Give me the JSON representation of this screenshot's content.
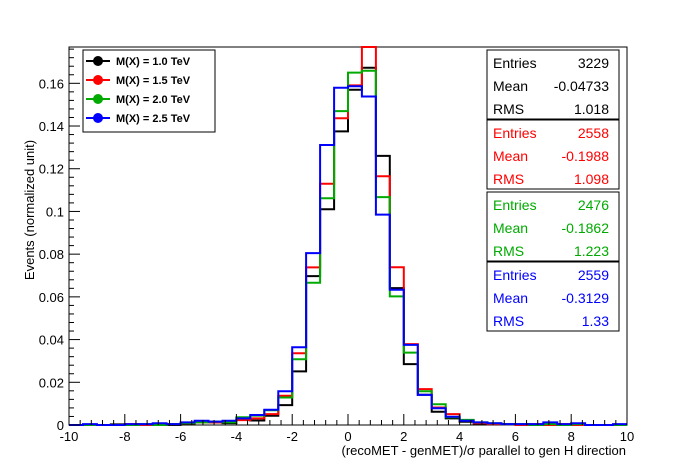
{
  "chart_data": {
    "type": "line",
    "drawstyle": "histogram-steps",
    "xlabel": "(recoMET - genMET)/σ parallel to gen H direction",
    "ylabel": "Events (normalized unit)",
    "xlim": [
      -10,
      10
    ],
    "ylim": [
      0,
      0.177
    ],
    "x_ticks": [
      -10,
      -8,
      -6,
      -4,
      -2,
      0,
      2,
      4,
      6,
      8,
      10
    ],
    "y_ticks": [
      0,
      0.02,
      0.04,
      0.06,
      0.08,
      0.1,
      0.12,
      0.14,
      0.16
    ],
    "y_tick_labels": [
      "0",
      "0.02",
      "0.04",
      "0.06",
      "0.08",
      "0.1",
      "0.12",
      "0.14",
      "0.16"
    ],
    "grid": false,
    "legend_position": "top-left",
    "bin_edges": [
      -10,
      -9.5,
      -9,
      -8.5,
      -8,
      -7.5,
      -7,
      -6.5,
      -6,
      -5.5,
      -5,
      -4.5,
      -4,
      -3.5,
      -3,
      -2.5,
      -2,
      -1.5,
      -1,
      -0.5,
      0,
      0.5,
      1,
      1.5,
      2,
      2.5,
      3,
      3.5,
      4,
      4.5,
      5,
      5.5,
      6,
      6.5,
      7,
      7.5,
      8,
      8.5,
      9,
      9.5,
      10
    ],
    "series": [
      {
        "name": "M(X) = 1.0 TeV",
        "color": "#000000",
        "values": [
          0,
          0,
          0,
          0.0003,
          0,
          0,
          0.0003,
          0,
          0.0006,
          0.0015,
          0.0012,
          0.0009,
          0.0024,
          0.0021,
          0.0043,
          0.0093,
          0.0251,
          0.0697,
          0.101,
          0.1375,
          0.157,
          0.1673,
          0.126,
          0.0641,
          0.0285,
          0.0142,
          0.0062,
          0.0031,
          0.0015,
          0.0006,
          0.0006,
          0.0003,
          0.0003,
          0,
          0.0003,
          0,
          0,
          0,
          0,
          0
        ]
      },
      {
        "name": "M(X) = 1.5 TeV",
        "color": "#ff0000",
        "values": [
          0,
          0,
          0,
          0,
          0.0004,
          0,
          0,
          0.0004,
          0.0008,
          0.0012,
          0.0012,
          0.0016,
          0.0023,
          0.0031,
          0.0051,
          0.0137,
          0.0336,
          0.0738,
          0.113,
          0.1436,
          0.159,
          0.1775,
          0.1165,
          0.0739,
          0.0379,
          0.0168,
          0.0082,
          0.0051,
          0.0023,
          0.0008,
          0.0004,
          0.0004,
          0,
          0.0004,
          0,
          0.0004,
          0,
          0,
          0,
          0
        ]
      },
      {
        "name": "M(X) = 2.0 TeV",
        "color": "#00aa00",
        "values": [
          0,
          0,
          0,
          0,
          0,
          0.0004,
          0,
          0.0004,
          0.0008,
          0.0012,
          0.0016,
          0.0012,
          0.0036,
          0.0044,
          0.0069,
          0.0129,
          0.0308,
          0.0666,
          0.1062,
          0.147,
          0.165,
          0.1659,
          0.1067,
          0.0602,
          0.0339,
          0.0158,
          0.0097,
          0.0036,
          0.0024,
          0.0012,
          0.0008,
          0.0004,
          0.0004,
          0,
          0.0004,
          0,
          0.0004,
          0,
          0,
          0
        ]
      },
      {
        "name": "M(X) = 2.5 TeV",
        "color": "#0000ff",
        "values": [
          0,
          0.0004,
          0,
          0,
          0.0004,
          0.0004,
          0.0008,
          0.0004,
          0.0012,
          0.002,
          0.0016,
          0.002,
          0.0031,
          0.0047,
          0.0071,
          0.0158,
          0.0364,
          0.0805,
          0.1311,
          0.1579,
          0.1586,
          0.1538,
          0.0985,
          0.0633,
          0.0375,
          0.0141,
          0.0078,
          0.0039,
          0.002,
          0.0012,
          0.0008,
          0.0004,
          0.0004,
          0.0004,
          0.0012,
          0.0004,
          0.0008,
          0,
          0,
          0.0004
        ]
      }
    ],
    "legend": [
      {
        "label": "M(X) = 1.0 TeV",
        "color": "#000000"
      },
      {
        "label": "M(X) = 1.5 TeV",
        "color": "#ff0000"
      },
      {
        "label": "M(X) = 2.0 TeV",
        "color": "#00aa00"
      },
      {
        "label": "M(X) = 2.5 TeV",
        "color": "#0000ff"
      }
    ],
    "stats_boxes": [
      {
        "color": "#000000",
        "rows": [
          {
            "k": "Entries",
            "v": "3229"
          },
          {
            "k": "Mean",
            "v": "-0.04733"
          },
          {
            "k": "RMS",
            "v": "1.018"
          }
        ]
      },
      {
        "color": "#ff0000",
        "rows": [
          {
            "k": "Entries",
            "v": "2558"
          },
          {
            "k": "Mean",
            "v": "-0.1988"
          },
          {
            "k": "RMS",
            "v": "1.098"
          }
        ]
      },
      {
        "color": "#00aa00",
        "rows": [
          {
            "k": "Entries",
            "v": "2476"
          },
          {
            "k": "Mean",
            "v": "-0.1862"
          },
          {
            "k": "RMS",
            "v": "1.223"
          }
        ]
      },
      {
        "color": "#0000ff",
        "rows": [
          {
            "k": "Entries",
            "v": "2559"
          },
          {
            "k": "Mean",
            "v": "-0.3129"
          },
          {
            "k": "RMS",
            "v": "1.33"
          }
        ]
      }
    ]
  }
}
